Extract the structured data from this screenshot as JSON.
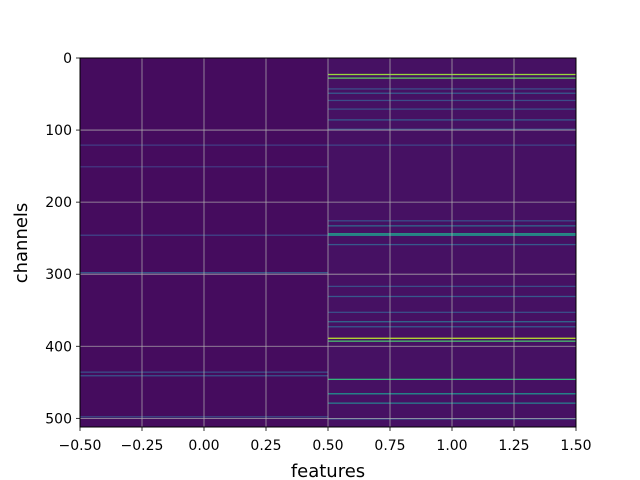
{
  "chart_data": {
    "type": "heatmap",
    "title": "",
    "xlabel": "features",
    "ylabel": "channels",
    "xlim": [
      -0.5,
      1.5
    ],
    "ylim": [
      512,
      0
    ],
    "x_ticks": [
      -0.5,
      -0.25,
      0.0,
      0.25,
      0.5,
      0.75,
      1.0,
      1.25,
      1.5
    ],
    "x_tick_labels": [
      "−0.50",
      "−0.25",
      "0.00",
      "0.25",
      "0.50",
      "0.75",
      "1.00",
      "1.25",
      "1.50"
    ],
    "y_ticks": [
      0,
      100,
      200,
      300,
      400,
      500
    ],
    "y_tick_labels": [
      "0",
      "100",
      "200",
      "300",
      "400",
      "500"
    ],
    "grid": true,
    "colormap": "viridis",
    "n_channels": 512,
    "n_features": 2,
    "columns": [
      {
        "feature_index": 0,
        "background_level": 0.04,
        "highlighted_rows": [
          {
            "channel": 120,
            "level": 0.22
          },
          {
            "channel": 150,
            "level": 0.2
          },
          {
            "channel": 245,
            "level": 0.25
          },
          {
            "channel": 297,
            "level": 0.35
          },
          {
            "channel": 435,
            "level": 0.3
          },
          {
            "channel": 440,
            "level": 0.32
          },
          {
            "channel": 497,
            "level": 0.3
          }
        ]
      },
      {
        "feature_index": 1,
        "background_level": 0.06,
        "highlighted_rows": [
          {
            "channel": 22,
            "level": 0.85
          },
          {
            "channel": 27,
            "level": 0.75
          },
          {
            "channel": 42,
            "level": 0.3
          },
          {
            "channel": 48,
            "level": 0.35
          },
          {
            "channel": 58,
            "level": 0.3
          },
          {
            "channel": 70,
            "level": 0.3
          },
          {
            "channel": 85,
            "level": 0.35
          },
          {
            "channel": 98,
            "level": 0.3
          },
          {
            "channel": 120,
            "level": 0.25
          },
          {
            "channel": 225,
            "level": 0.3
          },
          {
            "channel": 232,
            "level": 0.4
          },
          {
            "channel": 243,
            "level": 0.55
          },
          {
            "channel": 245,
            "level": 0.5
          },
          {
            "channel": 258,
            "level": 0.35
          },
          {
            "channel": 316,
            "level": 0.3
          },
          {
            "channel": 330,
            "level": 0.35
          },
          {
            "channel": 352,
            "level": 0.3
          },
          {
            "channel": 365,
            "level": 0.4
          },
          {
            "channel": 372,
            "level": 0.35
          },
          {
            "channel": 388,
            "level": 0.9
          },
          {
            "channel": 392,
            "level": 0.7
          },
          {
            "channel": 445,
            "level": 0.65
          },
          {
            "channel": 465,
            "level": 0.5
          },
          {
            "channel": 478,
            "level": 0.45
          },
          {
            "channel": 500,
            "level": 0.3
          }
        ]
      }
    ]
  }
}
